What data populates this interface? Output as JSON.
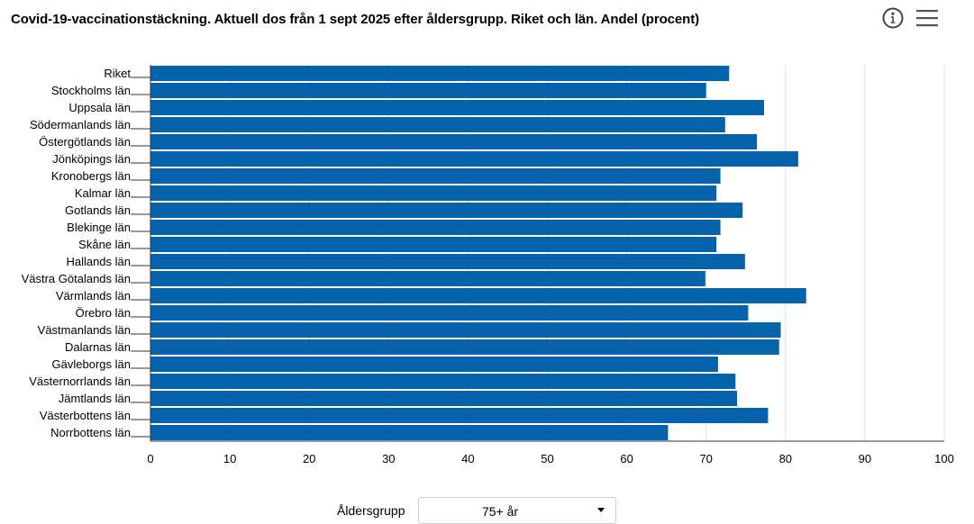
{
  "title": "Covid-19-vaccinationstäckning. Aktuell dos från 1 sept 2025 efter åldersgrupp. Riket och län. Andel (procent)",
  "toolbar": {
    "info_icon": "info-circle-icon",
    "menu_icon": "hamburger-menu-icon"
  },
  "control": {
    "label": "Åldersgrupp",
    "selected": "75+ år"
  },
  "colors": {
    "bar": "#0563ab",
    "grid": "#dddddd",
    "axis": "#333333"
  },
  "chart_data": {
    "type": "bar",
    "orientation": "horizontal",
    "categories": [
      "Riket",
      "Stockholms län",
      "Uppsala län",
      "Södermanlands län",
      "Östergötlands län",
      "Jönköpings län",
      "Kronobergs län",
      "Kalmar län",
      "Gotlands län",
      "Blekinge län",
      "Skåne län",
      "Hallands län",
      "Västra Götalands län",
      "Värmlands län",
      "Örebro län",
      "Västmanlands län",
      "Dalarnas län",
      "Gävleborgs län",
      "Västernorrlands län",
      "Jämtlands län",
      "Västerbottens län",
      "Norrbottens län"
    ],
    "values": [
      72.9,
      70.0,
      77.3,
      72.4,
      76.4,
      81.6,
      71.8,
      71.3,
      74.6,
      71.8,
      71.3,
      74.9,
      69.9,
      82.6,
      75.3,
      79.4,
      79.2,
      71.5,
      73.7,
      73.9,
      77.8,
      65.2
    ],
    "xlim": [
      0,
      100
    ],
    "xticks": [
      0,
      10,
      20,
      30,
      40,
      50,
      60,
      70,
      80,
      90,
      100
    ],
    "xlabel": "",
    "ylabel": "",
    "grid": true,
    "legend": "none"
  }
}
